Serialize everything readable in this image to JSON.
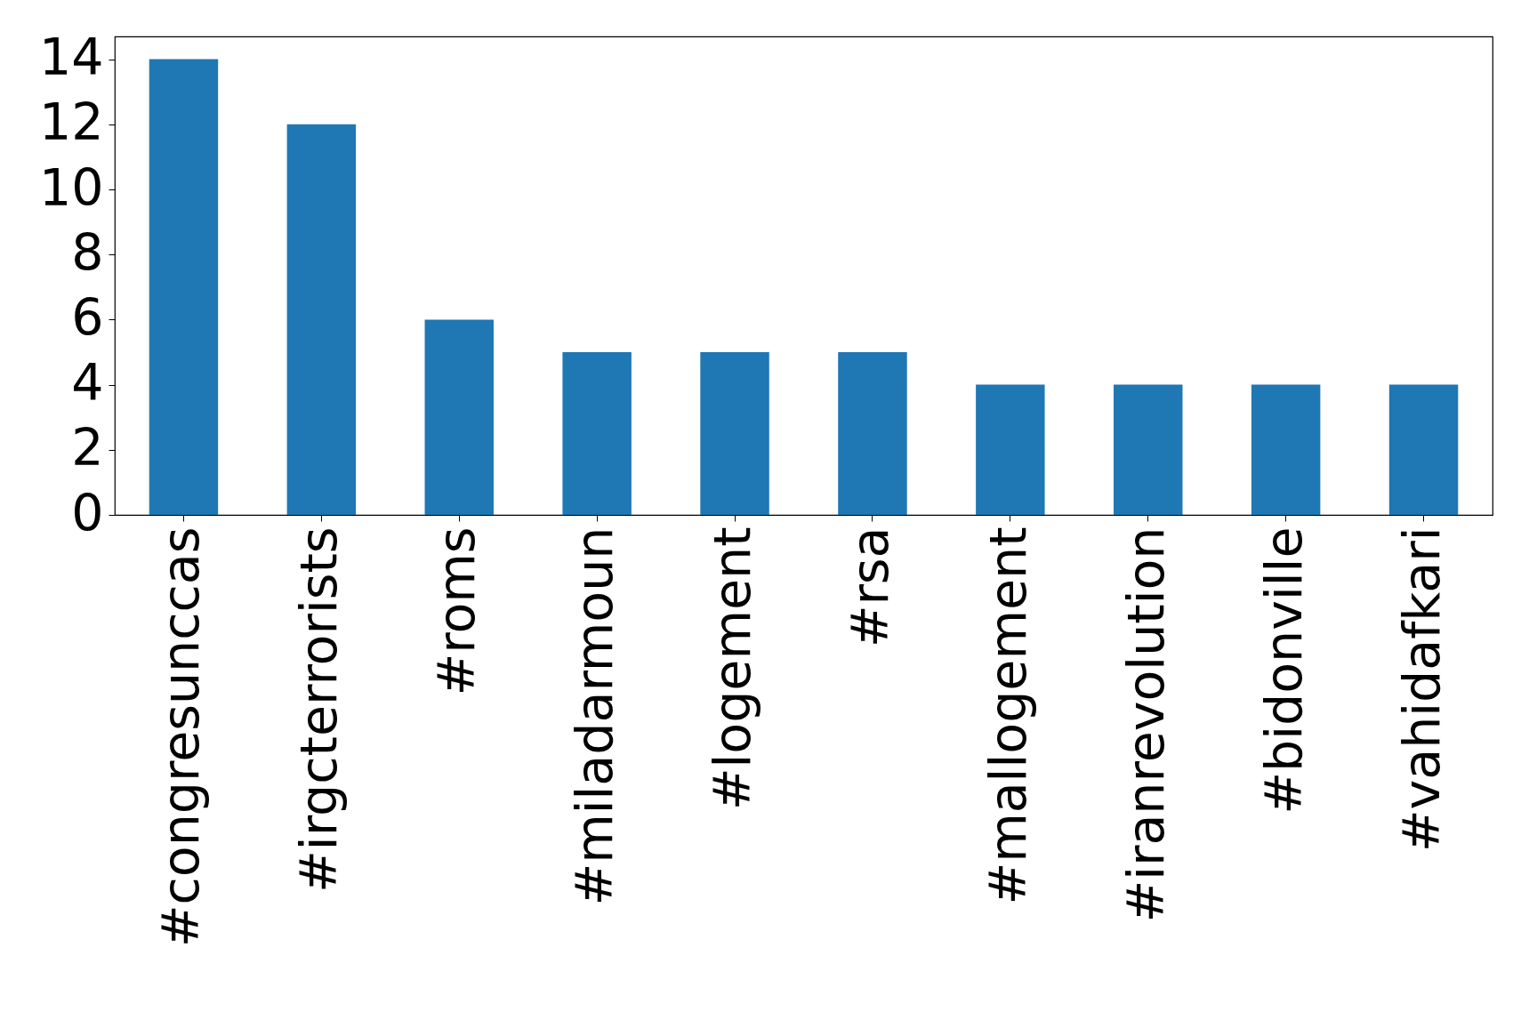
{
  "chart_data": {
    "type": "bar",
    "categories": [
      "#congresunccas",
      "#irgcterrorists",
      "#roms",
      "#miladarmoun",
      "#logement",
      "#rsa",
      "#mallogement",
      "#iranrevolution",
      "#bidonville",
      "#vahidafkari"
    ],
    "values": [
      14,
      12,
      6,
      5,
      5,
      5,
      4,
      4,
      4,
      4
    ],
    "color": "#1f77b4",
    "ylim": [
      0,
      14.7
    ],
    "yticks": [
      0,
      2,
      4,
      6,
      8,
      10,
      12,
      14
    ],
    "grid": false
  }
}
